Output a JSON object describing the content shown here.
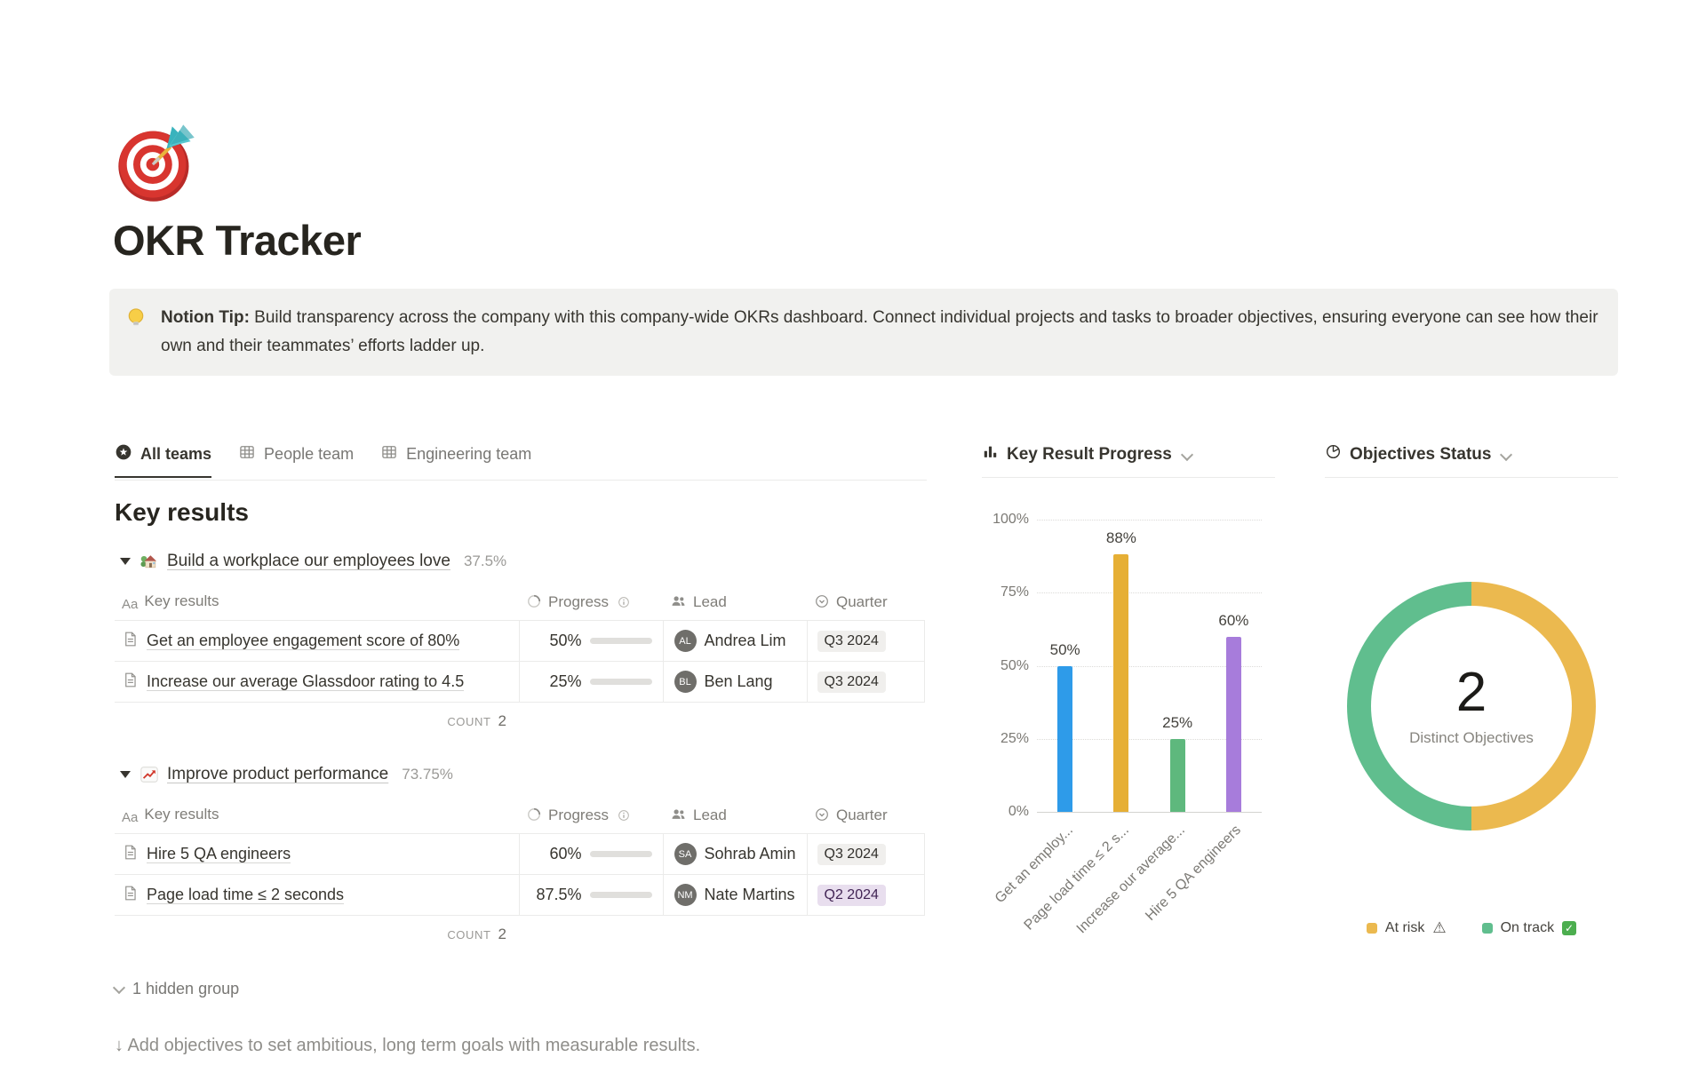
{
  "page": {
    "title": "OKR Tracker",
    "icon": "dartboard-icon"
  },
  "callout": {
    "icon": "light-bulb-icon",
    "bold": "Notion Tip:",
    "text": " Build transparency across the company with this company-wide OKRs dashboard. Connect individual projects and tasks to broader objectives, ensuring everyone can see how their own and their teammates’ efforts ladder up."
  },
  "tabs": [
    {
      "label": "All teams",
      "icon": "star-view-icon",
      "active": true
    },
    {
      "label": "People team",
      "icon": "table-view-icon",
      "active": false
    },
    {
      "label": "Engineering team",
      "icon": "table-view-icon",
      "active": false
    }
  ],
  "section_title": "Key results",
  "table_headers": {
    "name": "Key results",
    "name_icon": "Aa",
    "progress": "Progress",
    "progress_icon": "progress-ring-icon",
    "info_icon": "info-icon",
    "lead": "Lead",
    "lead_icon": "people-icon",
    "quarter": "Quarter",
    "quarter_icon": "select-icon"
  },
  "groups": [
    {
      "icon": "house-emoji-icon",
      "title": "Build a workplace our employees love",
      "percent": "37.5%",
      "rows": [
        {
          "name": "Get an employee engagement score of 80%",
          "progress_label": "50%",
          "progress": 50,
          "lead": "Andrea Lim",
          "lead_initials": "AL",
          "quarter": "Q3 2024",
          "quarter_color": "gray"
        },
        {
          "name": "Increase our average Glassdoor rating to 4.5",
          "progress_label": "25%",
          "progress": 25,
          "lead": "Ben Lang",
          "lead_initials": "BL",
          "quarter": "Q3 2024",
          "quarter_color": "gray"
        }
      ],
      "count_label": "COUNT",
      "count": "2"
    },
    {
      "icon": "chart-up-emoji-icon",
      "title": "Improve product performance",
      "percent": "73.75%",
      "rows": [
        {
          "name": "Hire 5 QA engineers",
          "progress_label": "60%",
          "progress": 60,
          "lead": "Sohrab Amin",
          "lead_initials": "SA",
          "quarter": "Q3 2024",
          "quarter_color": "gray"
        },
        {
          "name": "Page load time ≤ 2 seconds",
          "progress_label": "87.5%",
          "progress": 87.5,
          "lead": "Nate Martins",
          "lead_initials": "NM",
          "quarter": "Q2 2024",
          "quarter_color": "purple"
        }
      ],
      "count_label": "COUNT",
      "count": "2"
    }
  ],
  "hidden_group": "1 hidden group",
  "footer_hint": "↓ Add objectives to set ambitious, long term goals with measurable results.",
  "charts": {
    "bar_header": "Key Result Progress",
    "pie_header": "Objectives Status"
  },
  "progress_bar_color": "#5e9672",
  "chart_data": [
    {
      "type": "bar",
      "title": "Key Result Progress",
      "categories": [
        "Get an employ...",
        "Page load time ≤ 2 s...",
        "Increase our average...",
        "Hire 5 QA engineers"
      ],
      "values": [
        50,
        88,
        25,
        60
      ],
      "value_labels": [
        "50%",
        "88%",
        "25%",
        "60%"
      ],
      "bar_colors": [
        "#2E9BE9",
        "#E6AF35",
        "#5EB87D",
        "#A77CDB"
      ],
      "yticks": [
        100,
        75,
        50,
        25,
        0
      ],
      "ytick_labels": [
        "100%",
        "75%",
        "50%",
        "25%",
        "0%"
      ],
      "ylim": [
        0,
        100
      ],
      "grid": "dotted-horizontal",
      "legend_position": "none"
    },
    {
      "type": "pie",
      "title": "Objectives Status",
      "center_value": "2",
      "center_label": "Distinct Objectives",
      "segments": [
        {
          "name": "At risk",
          "value": 1,
          "color": "#EBB94F"
        },
        {
          "name": "On track",
          "value": 1,
          "color": "#60BE8E"
        }
      ],
      "legend": [
        {
          "label": "At risk",
          "color": "#EBB94F",
          "suffix_icon": "warning-icon"
        },
        {
          "label": "On track",
          "color": "#60BE8E",
          "suffix_icon": "check-icon"
        }
      ],
      "legend_position": "bottom"
    }
  ]
}
